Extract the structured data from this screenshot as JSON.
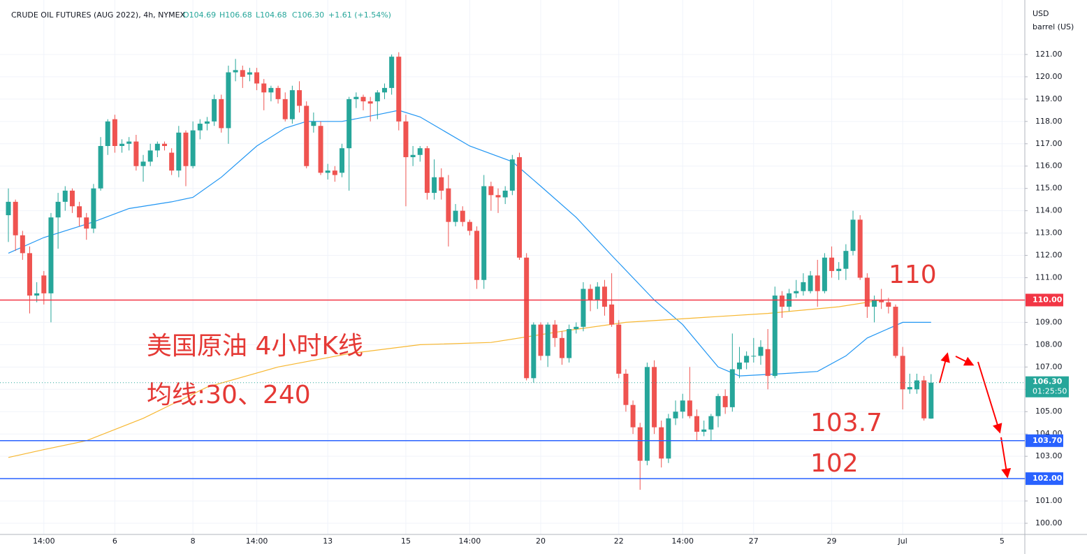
{
  "chart_data": {
    "type": "candlestick",
    "title": "CRUDE OIL FUTURES (AUG 2022), 4h, NYMEX",
    "header_values": [
      "O104.69",
      "H106.68",
      "L104.68",
      "C106.30",
      "+1.61 (+1.54%)"
    ],
    "y_unit": [
      "USD",
      "barrel (US)"
    ],
    "categories": [
      null,
      null,
      null,
      null,
      null,
      "14:00",
      null,
      null,
      null,
      null,
      null,
      null,
      null,
      null,
      null,
      "6",
      null,
      null,
      null,
      null,
      null,
      null,
      null,
      null,
      null,
      null,
      "8",
      null,
      null,
      null,
      null,
      null,
      null,
      null,
      null,
      "14:00",
      null,
      null,
      null,
      null,
      null,
      null,
      null,
      null,
      null,
      "13",
      null,
      null,
      null,
      null,
      null,
      null,
      null,
      null,
      null,
      null,
      "15",
      null,
      null,
      null,
      null,
      null,
      null,
      null,
      null,
      "14:00",
      null,
      null,
      null,
      null,
      null,
      null,
      null,
      null,
      null,
      "20",
      null,
      null,
      null,
      null,
      null,
      null,
      null,
      null,
      null,
      null,
      "22",
      null,
      null,
      null,
      null,
      null,
      null,
      null,
      null,
      "14:00",
      null,
      null,
      null,
      null,
      null,
      null,
      null,
      null,
      null,
      "27",
      null,
      null,
      null,
      null,
      null,
      null,
      null,
      null,
      null,
      null,
      "29",
      null,
      null,
      null,
      null,
      null,
      null,
      null,
      null,
      null,
      "Jul",
      null,
      null,
      null,
      null,
      null,
      null,
      null,
      null,
      null,
      null,
      null,
      null,
      null,
      "5"
    ],
    "open": [
      113.8,
      114.4,
      112.9,
      112.1,
      110.2,
      111.1,
      110.3,
      113.7,
      114.4,
      114.9,
      114.2,
      113.7,
      113.2,
      115.0,
      116.9,
      118.1,
      116.9,
      117.0,
      117.1,
      116.0,
      116.2,
      116.7,
      117.0,
      116.6,
      115.8,
      117.5,
      116.0,
      117.6,
      117.9,
      118.0,
      119.0,
      117.7,
      120.2,
      120.3,
      120.1,
      120.2,
      119.7,
      119.3,
      119.5,
      119.0,
      118.1,
      119.4,
      118.7,
      117.8,
      117.8,
      115.7,
      115.8,
      115.7,
      116.8,
      119.0,
      119.1,
      118.9,
      118.9,
      119.3,
      119.5,
      120.9,
      118.0,
      116.4,
      116.5,
      116.8,
      114.8,
      115.5,
      115.0,
      113.5,
      114.0,
      113.5,
      113.1,
      110.9,
      115.1,
      114.7,
      114.6,
      114.9,
      116.4,
      111.9,
      106.5,
      108.9,
      107.5,
      108.9,
      108.3,
      107.4,
      108.7,
      108.8,
      110.5,
      110.0,
      110.6,
      109.8,
      108.9,
      106.7,
      105.3,
      104.3,
      102.8,
      107.0,
      104.3,
      102.9,
      104.7,
      105.0,
      105.5,
      104.8,
      104.1,
      104.2,
      104.8,
      105.7,
      105.2,
      106.9,
      107.2,
      107.5,
      107.5,
      107.8,
      106.6,
      110.2,
      109.7,
      110.3,
      110.4,
      110.4,
      111.1,
      110.4,
      111.9,
      111.3,
      111.4,
      112.2,
      113.6,
      111.0,
      109.7,
      110.0,
      109.9,
      109.7,
      107.5,
      106.0,
      106.0,
      106.4,
      104.69,
      null,
      null,
      null,
      null,
      null,
      null,
      null,
      null,
      null,
      null
    ],
    "high": [
      115.0,
      114.5,
      113.1,
      112.4,
      110.8,
      111.3,
      113.9,
      114.8,
      115.1,
      115.0,
      114.4,
      113.9,
      115.2,
      117.3,
      118.1,
      118.3,
      117.2,
      117.3,
      117.4,
      116.5,
      117.0,
      117.1,
      117.1,
      116.8,
      117.8,
      117.6,
      118.0,
      118.1,
      118.2,
      119.2,
      119.2,
      120.5,
      120.8,
      120.5,
      120.4,
      120.4,
      119.9,
      119.6,
      119.6,
      119.3,
      119.6,
      119.8,
      118.9,
      118.4,
      118.0,
      116.1,
      116.0,
      117.0,
      119.1,
      119.3,
      119.2,
      119.1,
      119.4,
      119.7,
      121.0,
      121.1,
      118.3,
      116.9,
      116.9,
      116.9,
      116.3,
      115.9,
      115.6,
      114.3,
      114.2,
      113.6,
      113.3,
      115.6,
      115.3,
      115.0,
      115.1,
      116.5,
      116.6,
      112.1,
      109.0,
      109.0,
      109.0,
      109.1,
      108.6,
      108.9,
      109.0,
      110.8,
      110.7,
      110.8,
      110.9,
      111.2,
      109.1,
      106.9,
      105.5,
      104.5,
      107.2,
      107.3,
      104.6,
      104.9,
      105.5,
      105.8,
      107.0,
      105.1,
      104.6,
      104.9,
      105.8,
      106.0,
      108.5,
      107.9,
      107.7,
      108.3,
      108.2,
      108.7,
      110.6,
      110.4,
      110.5,
      110.9,
      111.2,
      111.3,
      111.8,
      112.1,
      112.4,
      111.7,
      112.5,
      114.0,
      113.8,
      111.2,
      110.2,
      110.5,
      110.1,
      109.8,
      107.9,
      106.7,
      106.7,
      106.6,
      106.68,
      null,
      null,
      null,
      null,
      null,
      null,
      null,
      null,
      null,
      null
    ],
    "low": [
      112.6,
      112.2,
      111.8,
      109.4,
      109.9,
      109.8,
      109.0,
      112.3,
      114.0,
      113.9,
      113.3,
      112.7,
      113.0,
      114.9,
      116.5,
      116.6,
      116.6,
      116.7,
      115.8,
      115.3,
      116.0,
      116.4,
      116.7,
      115.6,
      115.5,
      115.1,
      115.9,
      117.2,
      117.6,
      117.8,
      117.5,
      117.0,
      119.8,
      119.5,
      119.8,
      119.4,
      118.5,
      118.9,
      118.8,
      118.0,
      117.9,
      118.4,
      115.9,
      117.5,
      115.6,
      115.4,
      115.3,
      115.5,
      114.9,
      118.6,
      118.5,
      118.0,
      118.1,
      119.0,
      119.2,
      117.6,
      114.2,
      116.0,
      116.2,
      114.5,
      114.5,
      114.5,
      112.4,
      113.3,
      113.3,
      112.9,
      110.5,
      110.5,
      114.0,
      113.9,
      114.3,
      114.7,
      111.8,
      106.4,
      106.3,
      107.3,
      107.0,
      107.9,
      107.1,
      107.2,
      108.5,
      108.6,
      109.5,
      109.6,
      109.3,
      108.8,
      106.5,
      105.0,
      104.0,
      101.5,
      102.6,
      104.0,
      102.5,
      102.7,
      104.4,
      104.7,
      104.7,
      103.7,
      103.9,
      103.7,
      104.3,
      104.9,
      105.0,
      106.5,
      106.9,
      107.2,
      107.1,
      106.0,
      106.5,
      109.2,
      109.5,
      110.1,
      110.2,
      110.3,
      109.7,
      110.3,
      111.0,
      110.9,
      110.9,
      112.0,
      110.9,
      109.2,
      109.0,
      109.6,
      109.4,
      107.4,
      105.1,
      105.8,
      105.8,
      104.6,
      104.68,
      null,
      null,
      null,
      null,
      null,
      null,
      null,
      null,
      null,
      null
    ],
    "close": [
      114.4,
      112.9,
      112.1,
      110.2,
      110.3,
      110.3,
      113.7,
      114.4,
      114.9,
      114.2,
      113.7,
      113.2,
      115.0,
      116.9,
      118.0,
      116.9,
      117.0,
      117.1,
      116.0,
      116.2,
      116.7,
      117.0,
      116.9,
      115.8,
      117.5,
      116.0,
      117.6,
      117.9,
      118.0,
      119.0,
      117.7,
      120.2,
      120.3,
      120.0,
      120.2,
      119.7,
      119.3,
      119.5,
      119.0,
      118.1,
      119.4,
      118.7,
      116.0,
      118.0,
      115.7,
      115.8,
      115.6,
      116.8,
      119.0,
      119.1,
      118.9,
      118.8,
      119.3,
      119.5,
      120.9,
      118.0,
      116.4,
      116.5,
      116.8,
      114.8,
      115.5,
      114.9,
      113.5,
      114.0,
      113.5,
      113.1,
      110.9,
      115.1,
      114.7,
      114.6,
      114.9,
      116.3,
      111.9,
      106.5,
      108.9,
      107.5,
      108.9,
      108.3,
      107.4,
      108.7,
      108.8,
      110.5,
      110.0,
      110.6,
      109.7,
      108.9,
      106.7,
      105.3,
      104.3,
      102.8,
      107.0,
      104.3,
      102.9,
      104.7,
      105.0,
      105.5,
      104.8,
      104.1,
      104.2,
      104.8,
      105.7,
      105.2,
      106.9,
      107.2,
      107.5,
      107.5,
      107.9,
      106.6,
      110.2,
      109.7,
      110.3,
      110.4,
      110.8,
      111.1,
      110.4,
      111.9,
      111.3,
      111.4,
      112.2,
      113.6,
      111.0,
      109.7,
      110.0,
      109.9,
      109.7,
      107.5,
      106.0,
      106.1,
      106.4,
      104.7,
      106.3,
      null,
      null,
      null,
      null,
      null,
      null,
      null,
      null,
      null,
      null
    ],
    "up_color": "#26a69a",
    "down_color": "#ef5350",
    "ylim": [
      99.5,
      123.44
    ],
    "yticks": [
      {
        "value": 100,
        "label": "100.00"
      },
      {
        "value": 101,
        "label": "101.00"
      },
      {
        "value": 102,
        "label": "102.00"
      },
      {
        "value": 103,
        "label": "103.00"
      },
      {
        "value": 104,
        "label": "104.00"
      },
      {
        "value": 105,
        "label": "105.00"
      },
      {
        "value": 106,
        "label": "106.00"
      },
      {
        "value": 107,
        "label": "107.00"
      },
      {
        "value": 108,
        "label": "108.00"
      },
      {
        "value": 109,
        "label": "109.00"
      },
      {
        "value": 110,
        "label": "110.00"
      },
      {
        "value": 111,
        "label": "111.00"
      },
      {
        "value": 112,
        "label": "112.00"
      },
      {
        "value": 113,
        "label": "113.00"
      },
      {
        "value": 114,
        "label": "114.00"
      },
      {
        "value": 115,
        "label": "115.00"
      },
      {
        "value": 116,
        "label": "116.00"
      },
      {
        "value": 117,
        "label": "117.00"
      },
      {
        "value": 118,
        "label": "118.00"
      },
      {
        "value": 119,
        "label": "119.00"
      },
      {
        "value": 120,
        "label": "120.00"
      },
      {
        "value": 121,
        "label": "121.00"
      }
    ],
    "grid": true,
    "moving_averages": [
      {
        "color": "#2196f3",
        "x": [
          0,
          5,
          12,
          17,
          23,
          26,
          30,
          35,
          39,
          42,
          47,
          52,
          55,
          58,
          65,
          71,
          75,
          80,
          85,
          91,
          95,
          100,
          103,
          109,
          114,
          118,
          121,
          126,
          130
        ],
        "values": [
          112.1,
          112.8,
          113.5,
          114.1,
          114.4,
          114.6,
          115.5,
          116.9,
          117.7,
          118.0,
          118.0,
          118.3,
          118.5,
          118.2,
          116.9,
          116.2,
          115.1,
          113.7,
          112.0,
          110.0,
          108.9,
          107.0,
          106.6,
          106.7,
          106.8,
          107.5,
          108.3,
          109.0,
          109.0
        ]
      },
      {
        "color": "#f7b731",
        "x": [
          0,
          5,
          11,
          19,
          28,
          38,
          48,
          58,
          68,
          78,
          87,
          97,
          107,
          117,
          123
        ],
        "values": [
          102.95,
          103.3,
          103.7,
          104.7,
          106.1,
          107.0,
          107.6,
          108.0,
          108.1,
          108.6,
          109.0,
          109.2,
          109.4,
          109.7,
          110.0
        ]
      }
    ],
    "levels": [
      {
        "value": 110,
        "label": "110.00",
        "annotation": "110",
        "color": "#f23645"
      },
      {
        "value": 103.7,
        "label": "103.70",
        "annotation": "103.7",
        "color": "#2962ff"
      },
      {
        "value": 102,
        "label": "102.00",
        "annotation": "102",
        "color": "#2962ff"
      }
    ],
    "last": {
      "value": 106.3,
      "label": "106.30",
      "countdown": "01:25:50",
      "color": "#26a69a"
    },
    "annotations": [
      "美国原油 4小时K线",
      "均线:30、240"
    ]
  }
}
